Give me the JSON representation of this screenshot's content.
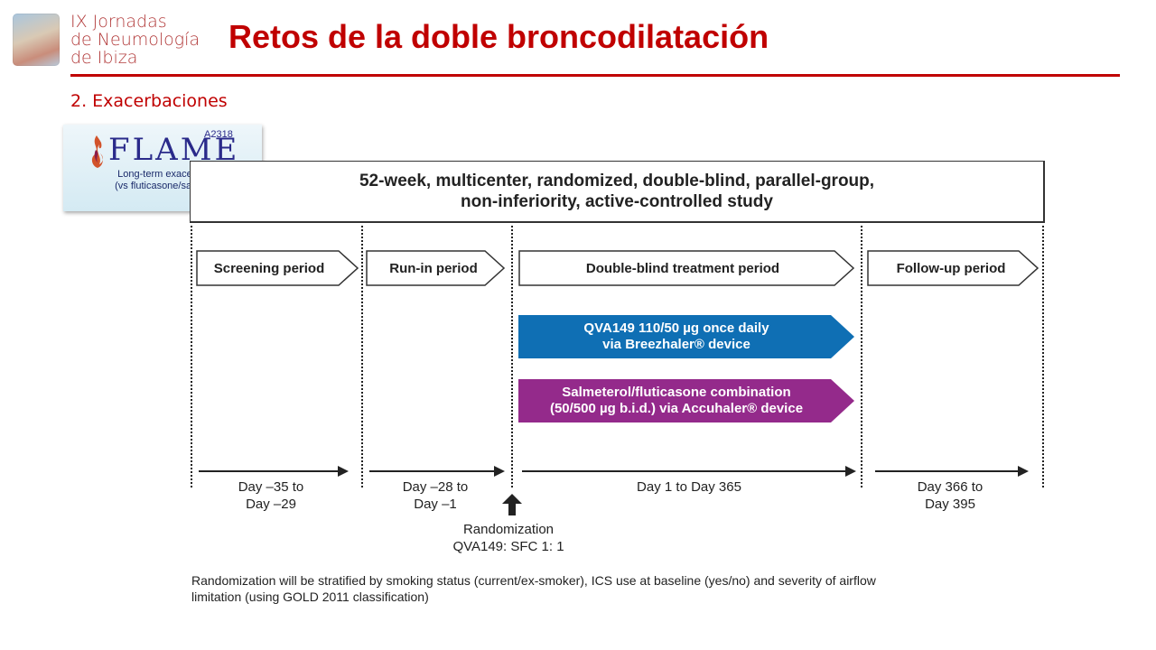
{
  "header": {
    "logo_lines": [
      "IX Jornadas",
      "de Neumología",
      "de Ibiza"
    ],
    "title": "Retos de la doble broncodilatación",
    "subtitle": "2. Exacerbaciones",
    "title_color": "#c00000"
  },
  "badge": {
    "word": "FLAME",
    "code": "A2318",
    "line1": "Long-term exacerbations",
    "line2": "(vs fluticasone/salmeterol)",
    "icon": "flame-icon"
  },
  "design": {
    "line1": "52-week, multicenter, randomized, double-blind, parallel-group,",
    "line2": "non-inferiority, active-controlled study"
  },
  "periods": [
    {
      "label": "Screening period"
    },
    {
      "label": "Run-in period"
    },
    {
      "label": "Double-blind treatment period"
    },
    {
      "label": "Follow-up period"
    }
  ],
  "treatments": [
    {
      "line1": "QVA149 110/50 µg once daily",
      "line2": "via Breezhaler® device",
      "color": "#0f6fb4"
    },
    {
      "line1": "Salmeterol/fluticasone combination",
      "line2": "(50/500 µg b.i.d.) via Accuhaler® device",
      "color": "#942a8b"
    }
  ],
  "timeline": [
    {
      "line1": "Day –35 to",
      "line2": "Day –29"
    },
    {
      "line1": "Day –28 to",
      "line2": "Day –1"
    },
    {
      "line1": "Day 1 to Day 365",
      "line2": ""
    },
    {
      "line1": "Day 366 to",
      "line2": "Day 395"
    }
  ],
  "randomization": {
    "line1": "Randomization",
    "line2": "QVA149: SFC 1: 1"
  },
  "footnote": {
    "line1": "Randomization will be stratified by smoking status (current/ex-smoker), ICS use at baseline (yes/no) and severity of airflow",
    "line2": "limitation (using GOLD 2011 classification)"
  }
}
